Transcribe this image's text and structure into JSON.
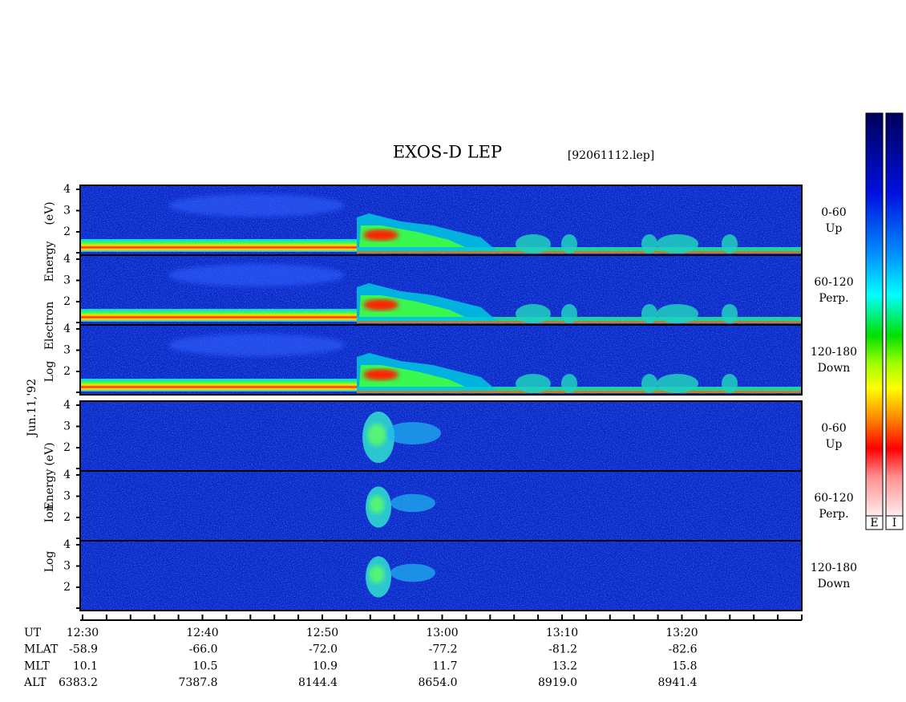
{
  "title": "EXOS-D LEP",
  "file": "[92061112.lep]",
  "date": "Jun.11,'92",
  "electron_label": [
    "Log",
    "Electron",
    "Energy",
    "(eV)"
  ],
  "ion_label": [
    "Log",
    "Ion",
    "Energy",
    "(eV)"
  ],
  "electron_panels": [
    {
      "yticks": [
        "4",
        "3",
        "2"
      ],
      "angle": "0-60",
      "direction": "Up"
    },
    {
      "yticks": [
        "4",
        "3",
        "2"
      ],
      "angle": "60-120",
      "direction": "Perp."
    },
    {
      "yticks": [
        "4",
        "3",
        "2"
      ],
      "angle": "120-180",
      "direction": "Down"
    }
  ],
  "ion_panels": [
    {
      "yticks": [
        "4",
        "3",
        "2"
      ],
      "angle": "0-60",
      "direction": "Up"
    },
    {
      "yticks": [
        "4",
        "3",
        "2"
      ],
      "angle": "60-120",
      "direction": "Perp."
    },
    {
      "yticks": [
        "4",
        "3",
        "2"
      ],
      "angle": "120-180",
      "direction": "Down"
    }
  ],
  "colorbar_labels": [
    "E",
    "I"
  ],
  "ephemeris": [
    {
      "name": "UT",
      "values": [
        "12:30",
        "12:40",
        "12:50",
        "13:00",
        "13:10",
        "13:20"
      ]
    },
    {
      "name": "MLAT",
      "values": [
        "-58.9",
        "-66.0",
        "-72.0",
        "-77.2",
        "-81.2",
        "-82.6"
      ]
    },
    {
      "name": "MLT",
      "values": [
        "10.1",
        "10.5",
        "10.9",
        "11.7",
        "13.2",
        "15.8"
      ]
    },
    {
      "name": "ALT",
      "values": [
        "6383.2",
        "7387.8",
        "8144.4",
        "8654.0",
        "8919.0",
        "8941.4"
      ]
    }
  ]
}
